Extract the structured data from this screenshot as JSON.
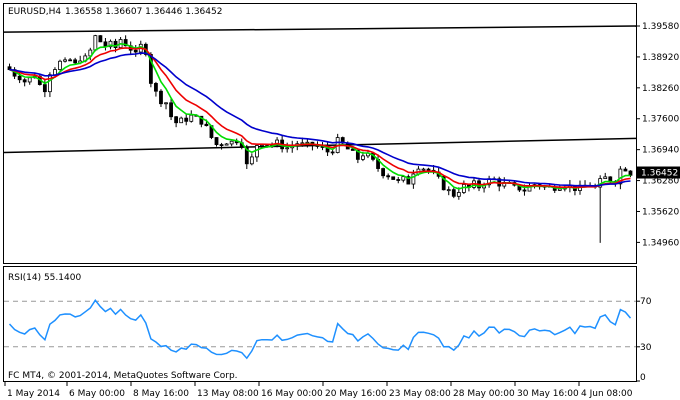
{
  "header": {
    "symbol": "EURUSD,H4",
    "ohlc": "1.36558 1.36607 1.36446 1.36452"
  },
  "chart_data": {
    "type": "candlestick",
    "instrument": "EURUSD",
    "timeframe": "H4",
    "ylim": [
      1.3452,
      1.4005
    ],
    "yticks": [
      "1.39580",
      "1.38920",
      "1.38260",
      "1.37600",
      "1.36940",
      "1.36280",
      "1.35620",
      "1.34960"
    ],
    "ytick_values": [
      1.3958,
      1.3892,
      1.3826,
      1.376,
      1.3694,
      1.3628,
      1.3562,
      1.3496
    ],
    "current_price": "1.36452",
    "current_price_value": 1.36452,
    "xticks": [
      "1 May 2014",
      "6 May 00:00",
      "8 May 16:00",
      "13 May 08:00",
      "16 May 00:00",
      "20 May 16:00",
      "23 May 08:00",
      "28 May 00:00",
      "30 May 16:00",
      "4 Jun 08:00"
    ],
    "trendlines": [
      {
        "start": 1.3945,
        "end": 1.3958
      },
      {
        "start": 1.3688,
        "end": 1.3718
      }
    ],
    "close_path": [
      1.3865,
      1.3855,
      1.385,
      1.384,
      1.3845,
      1.3855,
      1.3832,
      1.3825,
      1.386,
      1.387,
      1.388,
      1.3878,
      1.3885,
      1.3875,
      1.389,
      1.3888,
      1.3905,
      1.3935,
      1.3925,
      1.3915,
      1.3918,
      1.3912,
      1.393,
      1.392,
      1.391,
      1.3895,
      1.3915,
      1.3905,
      1.384,
      1.3815,
      1.38,
      1.3795,
      1.3765,
      1.3752,
      1.3755,
      1.376,
      1.3765,
      1.376,
      1.3755,
      1.374,
      1.372,
      1.3705,
      1.3708,
      1.3712,
      1.371,
      1.3715,
      1.3708,
      1.366,
      1.3675,
      1.3705,
      1.3712,
      1.3708,
      1.3705,
      1.3708,
      1.3702,
      1.3698,
      1.3702,
      1.3708,
      1.3704,
      1.3702,
      1.3705,
      1.37,
      1.3695,
      1.369,
      1.3695,
      1.3712,
      1.3705,
      1.3695,
      1.3685,
      1.3675,
      1.3685,
      1.368,
      1.3668,
      1.3655,
      1.3645,
      1.364,
      1.3633,
      1.3625,
      1.363,
      1.3625,
      1.3648,
      1.366,
      1.3655,
      1.365,
      1.364,
      1.363,
      1.3615,
      1.3605,
      1.3598,
      1.3608,
      1.3615,
      1.3612,
      1.362,
      1.3615,
      1.3625,
      1.3628,
      1.363,
      1.3622,
      1.362,
      1.3618,
      1.3612,
      1.3612,
      1.3608,
      1.3615,
      1.362,
      1.3618,
      1.3615,
      1.3612,
      1.3615,
      1.3618,
      1.362,
      1.3615,
      1.3612,
      1.361,
      1.3615,
      1.362,
      1.3612,
      1.3625,
      1.3633,
      1.363,
      1.3628,
      1.3652,
      1.3655,
      1.3645
    ],
    "moving_averages": [
      {
        "name": "fast",
        "color": "#00dd00"
      },
      {
        "name": "mid",
        "color": "#ee0000"
      },
      {
        "name": "slow",
        "color": "#0000cc"
      }
    ],
    "indicator": {
      "label": "RSI(14) 55.1400",
      "name": "RSI(14)",
      "value": 55.14,
      "ylim": [
        0,
        100
      ],
      "ytick_labels": [
        "70",
        "30",
        "0"
      ],
      "levels": [
        70,
        30
      ],
      "color": "#1e90ff"
    }
  },
  "copyright": "FC MT4, © 2001-2014, MetaQuotes Software Corp."
}
